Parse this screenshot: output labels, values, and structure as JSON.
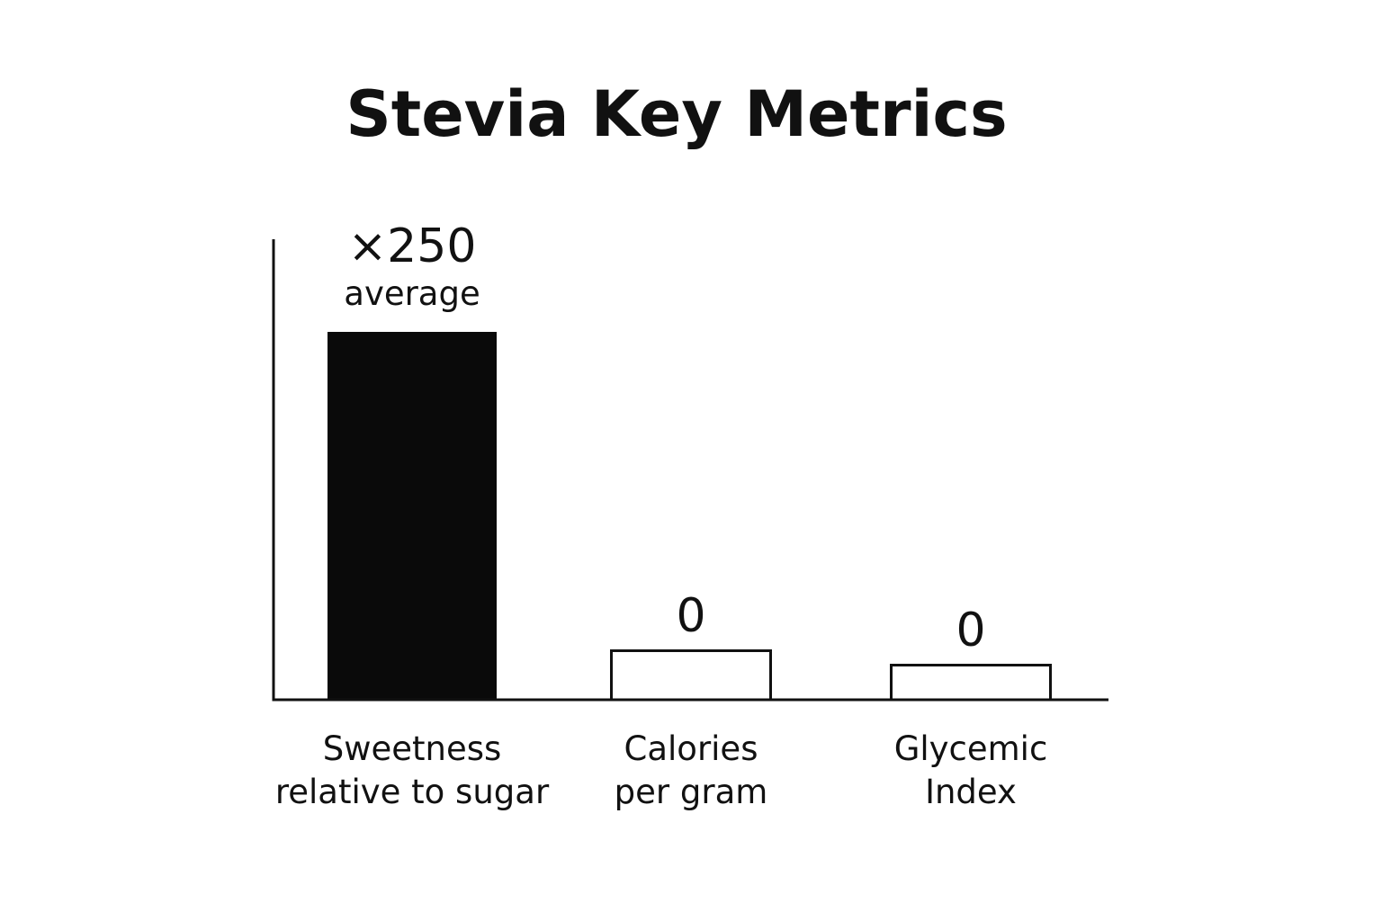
{
  "chart_data": {
    "type": "bar",
    "title": "Stevia Key Metrics",
    "xlabel": "",
    "ylabel": "",
    "grid": false,
    "categories": [
      [
        "Sweetness",
        "relative to sugar"
      ],
      [
        "Calories",
        "per gram"
      ],
      [
        "Glycemic",
        "Index"
      ]
    ],
    "values": [
      250,
      0,
      0
    ],
    "value_labels": [
      [
        "×250",
        "average"
      ],
      [
        "0"
      ],
      [
        "0"
      ]
    ],
    "bar_styles": [
      "filled",
      "outline",
      "outline"
    ],
    "colors": {
      "bar_fill": "#0a0a0a",
      "outline": "#111111",
      "axis": "#111111",
      "background": "#ffffff"
    }
  }
}
